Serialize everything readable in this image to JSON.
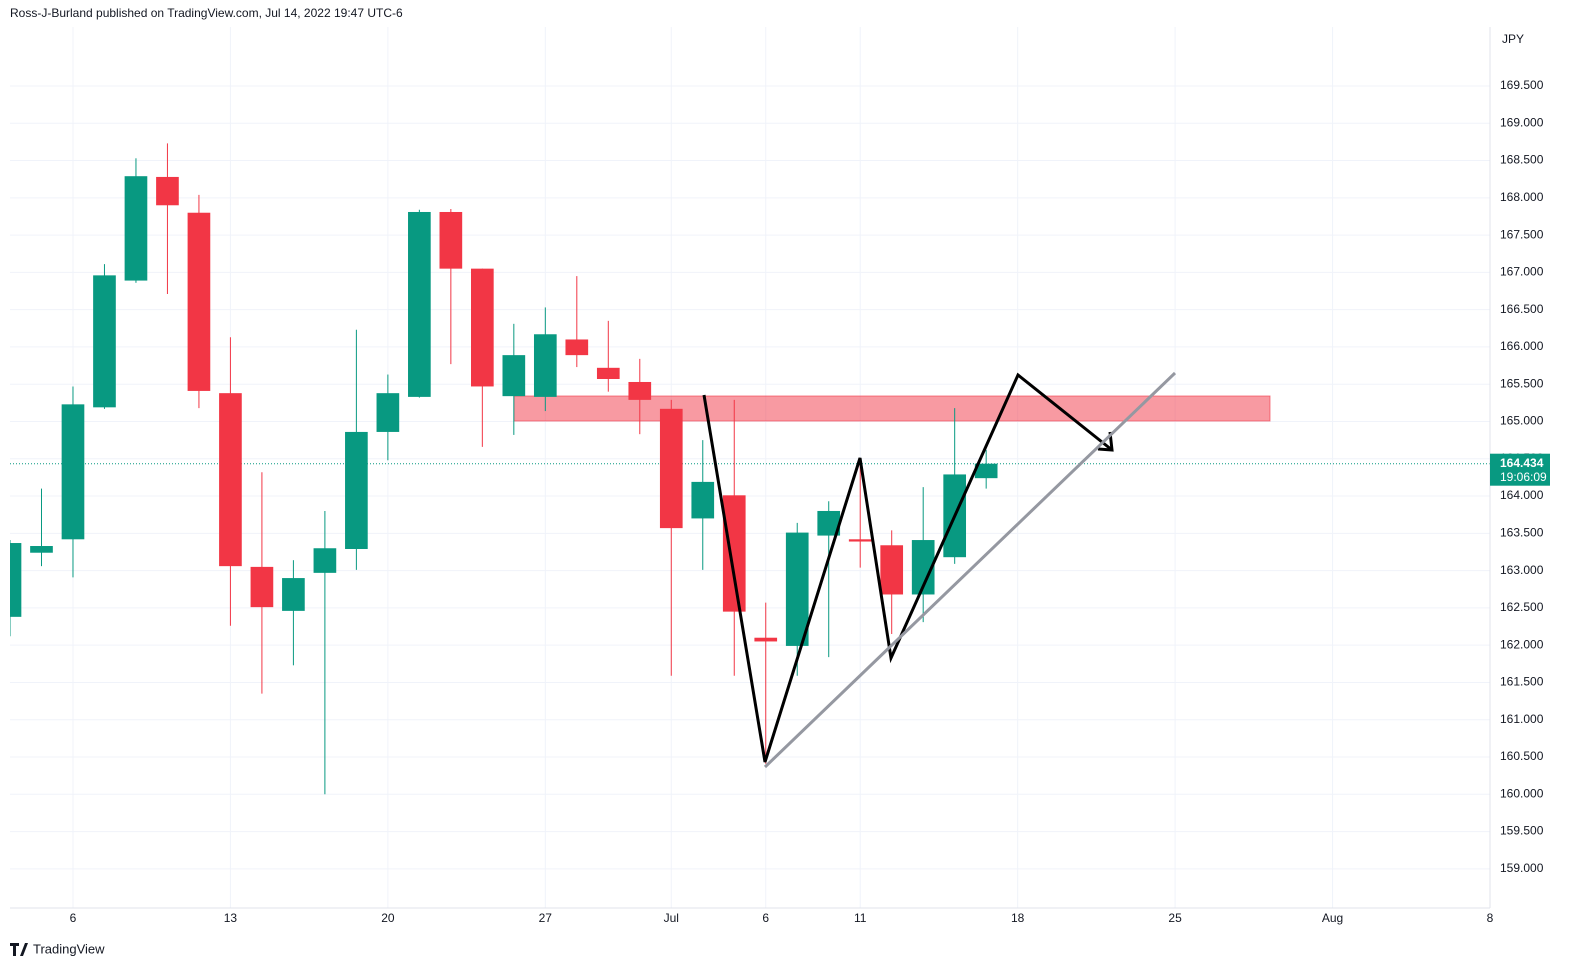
{
  "header": "Ross-J-Burland published on TradingView.com, Jul 14, 2022 19:47 UTC-6",
  "footer_brand": "TradingView",
  "chart_data": {
    "type": "candlestick",
    "currency": "JPY",
    "up_color": "#089981",
    "down_color": "#f23645",
    "open": [
      162.38,
      163.24,
      163.42,
      165.19,
      166.89,
      168.28,
      167.8,
      165.38,
      163.05,
      162.46,
      162.97,
      163.29,
      164.86,
      165.33,
      167.81,
      167.05,
      165.34,
      165.33,
      166.1,
      165.72,
      165.53,
      165.17,
      163.7,
      164.01,
      162.1,
      161.99,
      163.47,
      163.42,
      163.34,
      162.68,
      163.18,
      164.24
    ],
    "high": [
      163.41,
      164.1,
      165.47,
      167.11,
      168.53,
      168.73,
      168.04,
      166.13,
      164.32,
      163.14,
      163.8,
      166.23,
      165.63,
      167.84,
      167.85,
      167.05,
      166.31,
      166.53,
      166.95,
      166.35,
      165.84,
      165.29,
      164.75,
      165.29,
      162.57,
      163.64,
      163.93,
      164.47,
      163.54,
      164.12,
      165.18,
      164.62
    ],
    "low": [
      162.12,
      163.06,
      162.91,
      165.17,
      166.86,
      166.71,
      165.18,
      162.26,
      161.35,
      161.73,
      160.0,
      163.01,
      164.48,
      165.32,
      165.77,
      164.66,
      164.82,
      165.14,
      165.73,
      165.4,
      164.83,
      161.59,
      163.01,
      161.59,
      160.41,
      161.59,
      161.84,
      163.04,
      162.15,
      162.31,
      163.09,
      164.1
    ],
    "close": [
      163.37,
      163.33,
      165.23,
      166.96,
      168.29,
      167.9,
      165.41,
      163.06,
      162.51,
      162.9,
      163.3,
      164.86,
      165.38,
      167.81,
      167.05,
      165.47,
      165.89,
      166.17,
      165.89,
      165.57,
      165.29,
      163.57,
      164.19,
      162.45,
      162.05,
      163.51,
      163.8,
      163.39,
      162.68,
      163.41,
      164.29,
      164.434
    ],
    "last_price": 164.434,
    "countdown": "19:06:09",
    "xlim": [
      0,
      47
    ],
    "xticks": [
      {
        "value": 2,
        "label": "6"
      },
      {
        "value": 7,
        "label": "13"
      },
      {
        "value": 12,
        "label": "20"
      },
      {
        "value": 17,
        "label": "27"
      },
      {
        "value": 21,
        "label": "Jul"
      },
      {
        "value": 24,
        "label": "6"
      },
      {
        "value": 27,
        "label": "11"
      },
      {
        "value": 32,
        "label": "18"
      },
      {
        "value": 37,
        "label": "25"
      },
      {
        "value": 42,
        "label": "Aug"
      },
      {
        "value": 47,
        "label": "8"
      }
    ],
    "ylim": [
      158.475,
      170.291
    ],
    "yticks": [
      {
        "value": 159,
        "label": "159.000"
      },
      {
        "value": 159.5,
        "label": "159.500"
      },
      {
        "value": 160,
        "label": "160.000"
      },
      {
        "value": 160.5,
        "label": "160.500"
      },
      {
        "value": 161,
        "label": "161.000"
      },
      {
        "value": 161.5,
        "label": "161.500"
      },
      {
        "value": 162,
        "label": "162.000"
      },
      {
        "value": 162.5,
        "label": "162.500"
      },
      {
        "value": 163,
        "label": "163.000"
      },
      {
        "value": 163.5,
        "label": "163.500"
      },
      {
        "value": 164,
        "label": "164.000"
      },
      {
        "value": 164.5,
        "label": "164.500"
      },
      {
        "value": 165,
        "label": "165.000"
      },
      {
        "value": 165.5,
        "label": "165.500"
      },
      {
        "value": 166,
        "label": "166.000"
      },
      {
        "value": 166.5,
        "label": "166.500"
      },
      {
        "value": 167,
        "label": "167.000"
      },
      {
        "value": 167.5,
        "label": "167.500"
      },
      {
        "value": 168,
        "label": "168.000"
      },
      {
        "value": 168.5,
        "label": "168.500"
      },
      {
        "value": 169,
        "label": "169.000"
      },
      {
        "value": 169.5,
        "label": "169.500"
      }
    ],
    "grid": true
  }
}
